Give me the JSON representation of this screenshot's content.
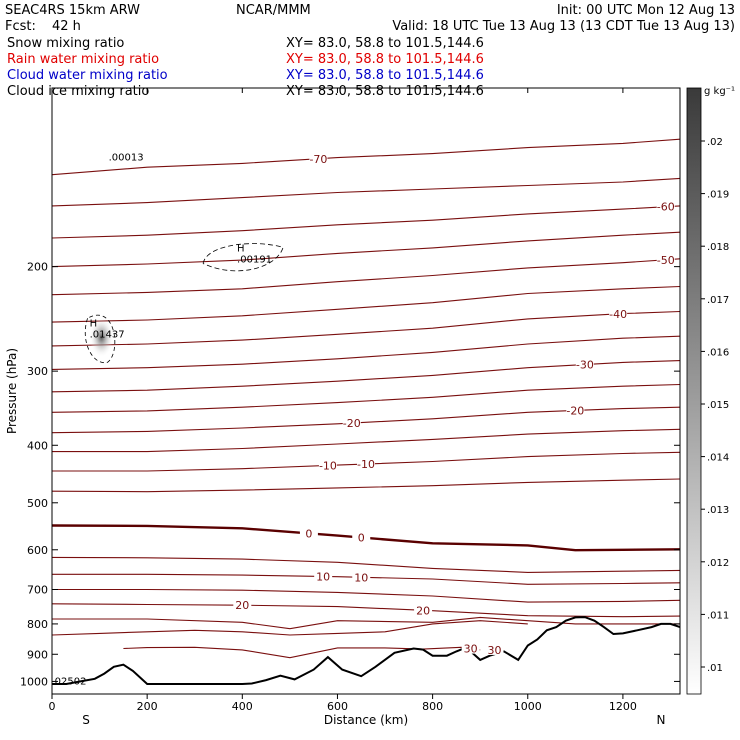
{
  "header": {
    "model": "SEAC4RS 15km ARW",
    "org": "NCAR/MMM",
    "init": "Init: 00 UTC Mon 12 Aug 13",
    "fcst_label": "Fcst:",
    "fcst_value": "42 h",
    "valid": "Valid: 18 UTC Tue 13 Aug 13 (13 CDT Tue 13 Aug 13)"
  },
  "fields": [
    {
      "name": "Snow mixing ratio",
      "xy": "XY=  83.0, 58.8 to 101.5,144.6",
      "color": "#000000"
    },
    {
      "name": "Rain water mixing ratio",
      "xy": "XY=  83.0, 58.8 to 101.5,144.6",
      "color": "#e00000"
    },
    {
      "name": "Cloud water mixing ratio",
      "xy": "XY=  83.0, 58.8 to 101.5,144.6",
      "color": "#0000c8"
    },
    {
      "name": "Cloud ice mixing ratio",
      "xy": "XY=  83.0, 58.8 to 101.5,144.6",
      "color": "#000000"
    }
  ],
  "chart_data": {
    "type": "cross-section contour",
    "xlabel": "Distance (km)",
    "ylabel": "Pressure (hPa)",
    "xlim": [
      0,
      1320
    ],
    "ylim": [
      1050,
      100
    ],
    "y_log": true,
    "x_ticks": [
      0,
      200,
      400,
      600,
      800,
      1000,
      1200
    ],
    "y_ticks": [
      200,
      300,
      400,
      500,
      600,
      700,
      800,
      900,
      1000
    ],
    "x_end_labels": {
      "left": "S",
      "right": "N"
    },
    "colorbar": {
      "unit": "g kg⁻¹",
      "ticks": [
        ".02",
        ".019",
        ".018",
        ".017",
        ".016",
        ".015",
        ".014",
        ".013",
        ".012",
        ".011",
        ".01"
      ]
    },
    "temperature_contours": [
      {
        "level": -70,
        "points": [
          [
            0,
            140
          ],
          [
            200,
            136
          ],
          [
            400,
            134
          ],
          [
            600,
            131
          ],
          [
            800,
            129
          ],
          [
            1000,
            126
          ],
          [
            1200,
            124
          ],
          [
            1320,
            122
          ]
        ]
      },
      {
        "level": -65,
        "points": [
          [
            0,
            158
          ],
          [
            200,
            156
          ],
          [
            400,
            153
          ],
          [
            600,
            150
          ],
          [
            800,
            148
          ],
          [
            1000,
            146
          ],
          [
            1200,
            144
          ],
          [
            1320,
            142
          ]
        ]
      },
      {
        "level": -60,
        "points": [
          [
            0,
            179
          ],
          [
            200,
            177
          ],
          [
            400,
            174
          ],
          [
            600,
            170
          ],
          [
            800,
            167
          ],
          [
            1000,
            163
          ],
          [
            1200,
            160
          ],
          [
            1320,
            158
          ]
        ]
      },
      {
        "level": -55,
        "points": [
          [
            0,
            200
          ],
          [
            200,
            198
          ],
          [
            400,
            195
          ],
          [
            600,
            190
          ],
          [
            800,
            186
          ],
          [
            1000,
            181
          ],
          [
            1200,
            177
          ],
          [
            1320,
            175
          ]
        ]
      },
      {
        "level": -50,
        "points": [
          [
            0,
            223
          ],
          [
            200,
            221
          ],
          [
            400,
            218
          ],
          [
            600,
            212
          ],
          [
            800,
            207
          ],
          [
            1000,
            201
          ],
          [
            1200,
            197
          ],
          [
            1320,
            194
          ]
        ]
      },
      {
        "level": -45,
        "points": [
          [
            0,
            248
          ],
          [
            200,
            246
          ],
          [
            400,
            242
          ],
          [
            600,
            236
          ],
          [
            800,
            230
          ],
          [
            1000,
            222
          ],
          [
            1200,
            218
          ],
          [
            1320,
            216
          ]
        ]
      },
      {
        "level": -40,
        "points": [
          [
            0,
            272
          ],
          [
            200,
            270
          ],
          [
            400,
            266
          ],
          [
            600,
            260
          ],
          [
            800,
            254
          ],
          [
            1000,
            245
          ],
          [
            1200,
            240
          ],
          [
            1320,
            238
          ]
        ]
      },
      {
        "level": -35,
        "points": [
          [
            0,
            298
          ],
          [
            200,
            296
          ],
          [
            400,
            292
          ],
          [
            600,
            286
          ],
          [
            800,
            279
          ],
          [
            1000,
            270
          ],
          [
            1200,
            264
          ],
          [
            1320,
            262
          ]
        ]
      },
      {
        "level": -30,
        "points": [
          [
            0,
            325
          ],
          [
            200,
            323
          ],
          [
            400,
            318
          ],
          [
            600,
            312
          ],
          [
            800,
            305
          ],
          [
            1000,
            296
          ],
          [
            1200,
            290
          ],
          [
            1320,
            288
          ]
        ]
      },
      {
        "level": -25,
        "points": [
          [
            0,
            352
          ],
          [
            200,
            350
          ],
          [
            400,
            345
          ],
          [
            600,
            339
          ],
          [
            800,
            332
          ],
          [
            1000,
            323
          ],
          [
            1200,
            318
          ],
          [
            1320,
            316
          ]
        ]
      },
      {
        "level": -20,
        "points": [
          [
            0,
            381
          ],
          [
            200,
            379
          ],
          [
            400,
            374
          ],
          [
            600,
            368
          ],
          [
            800,
            361
          ],
          [
            1000,
            352
          ],
          [
            1200,
            347
          ],
          [
            1320,
            345
          ]
        ]
      },
      {
        "level": -15,
        "points": [
          [
            0,
            410
          ],
          [
            200,
            410
          ],
          [
            400,
            405
          ],
          [
            600,
            398
          ],
          [
            800,
            391
          ],
          [
            1000,
            383
          ],
          [
            1200,
            378
          ],
          [
            1320,
            376
          ]
        ]
      },
      {
        "level": -10,
        "points": [
          [
            0,
            442
          ],
          [
            200,
            442
          ],
          [
            400,
            438
          ],
          [
            600,
            432
          ],
          [
            800,
            426
          ],
          [
            1000,
            418
          ],
          [
            1200,
            413
          ],
          [
            1320,
            411
          ]
        ]
      },
      {
        "level": -5,
        "points": [
          [
            0,
            478
          ],
          [
            200,
            479
          ],
          [
            400,
            476
          ],
          [
            600,
            472
          ],
          [
            800,
            468
          ],
          [
            1000,
            462
          ],
          [
            1200,
            458
          ],
          [
            1320,
            456
          ]
        ]
      },
      {
        "level": 0,
        "points": [
          [
            0,
            546
          ],
          [
            200,
            547
          ],
          [
            400,
            552
          ],
          [
            600,
            568
          ],
          [
            800,
            585
          ],
          [
            1000,
            590
          ],
          [
            1100,
            601
          ],
          [
            1200,
            600
          ],
          [
            1320,
            599
          ]
        ]
      },
      {
        "level": 5,
        "points": [
          [
            0,
            618
          ],
          [
            200,
            619
          ],
          [
            400,
            622
          ],
          [
            600,
            630
          ],
          [
            800,
            645
          ],
          [
            1000,
            655
          ],
          [
            1200,
            652
          ],
          [
            1320,
            650
          ]
        ]
      },
      {
        "level": 10,
        "points": [
          [
            0,
            660
          ],
          [
            200,
            660
          ],
          [
            400,
            662
          ],
          [
            600,
            666
          ],
          [
            800,
            672
          ],
          [
            1000,
            686
          ],
          [
            1200,
            684
          ],
          [
            1320,
            682
          ]
        ]
      },
      {
        "level": 15,
        "points": [
          [
            0,
            700
          ],
          [
            200,
            700
          ],
          [
            400,
            702
          ],
          [
            600,
            708
          ],
          [
            800,
            718
          ],
          [
            1000,
            735
          ],
          [
            1200,
            733
          ],
          [
            1320,
            730
          ]
        ]
      },
      {
        "level": 20,
        "points": [
          [
            0,
            740
          ],
          [
            200,
            742
          ],
          [
            400,
            744
          ],
          [
            600,
            748
          ],
          [
            800,
            760
          ],
          [
            1000,
            775
          ],
          [
            1200,
            778
          ],
          [
            1320,
            776
          ]
        ]
      },
      {
        "level": 25,
        "points": [
          [
            0,
            785
          ],
          [
            200,
            785
          ],
          [
            400,
            795
          ],
          [
            500,
            815
          ],
          [
            600,
            790
          ],
          [
            800,
            795
          ],
          [
            900,
            780
          ],
          [
            1000,
            790
          ],
          [
            1100,
            800
          ],
          [
            1320,
            800
          ]
        ]
      },
      {
        "level": 28,
        "points": [
          [
            0,
            835
          ],
          [
            100,
            830
          ],
          [
            200,
            825
          ],
          [
            300,
            820
          ],
          [
            400,
            825
          ],
          [
            500,
            835
          ],
          [
            600,
            830
          ],
          [
            700,
            825
          ],
          [
            800,
            800
          ],
          [
            900,
            790
          ],
          [
            1000,
            800
          ]
        ]
      },
      {
        "level": 30,
        "points": [
          [
            150,
            880
          ],
          [
            200,
            877
          ],
          [
            300,
            876
          ],
          [
            400,
            885
          ],
          [
            500,
            912
          ],
          [
            600,
            878
          ],
          [
            700,
            878
          ],
          [
            780,
            882
          ],
          [
            860,
            876
          ],
          [
            900,
            885
          ]
        ]
      }
    ],
    "zero_contour_level": 0,
    "hydrometeors": [
      {
        "field": "Snow mixing ratio",
        "label": "H",
        "max": ".01437",
        "x": 100,
        "p": 258
      },
      {
        "field": "Cloud ice mixing ratio",
        "label": "H",
        "max": ".00191",
        "x": 410,
        "p": 193
      },
      {
        "field": "Cloud ice mixing ratio",
        "label": "",
        "max": ".00013",
        "x": 140,
        "p": 130
      },
      {
        "field": "Cloud water mixing ratio",
        "label": "",
        "max": ".02502",
        "x": 20,
        "p": 993
      }
    ],
    "terrain_pressure": {
      "x": [
        0,
        30,
        60,
        90,
        110,
        130,
        150,
        170,
        200,
        230,
        250,
        300,
        350,
        400,
        420,
        450,
        480,
        510,
        550,
        580,
        610,
        650,
        680,
        720,
        760,
        780,
        800,
        830,
        850,
        870,
        880,
        900,
        920,
        950,
        980,
        1000,
        1020,
        1040,
        1060,
        1080,
        1100,
        1120,
        1140,
        1160,
        1180,
        1200,
        1230,
        1260,
        1280,
        1300,
        1320
      ],
      "p": [
        1010,
        1010,
        1000,
        990,
        970,
        945,
        937,
        960,
        1010,
        1010,
        1010,
        1010,
        1010,
        1010,
        1008,
        995,
        978,
        992,
        955,
        910,
        955,
        980,
        945,
        895,
        880,
        884,
        905,
        905,
        890,
        877,
        890,
        920,
        905,
        890,
        920,
        870,
        850,
        820,
        810,
        790,
        780,
        779,
        790,
        810,
        832,
        830,
        820,
        810,
        800,
        800,
        810
      ]
    },
    "labels_on_plot": [
      "-70",
      "-60",
      "-50",
      "-40",
      "-30",
      "-20",
      "-20",
      "-10",
      "-10",
      "0",
      "0",
      "10",
      "10",
      "20",
      "20",
      "30",
      "30",
      "30"
    ]
  },
  "colors": {
    "temp_contour": "#7a0f0f",
    "zero_contour": "#5a0000",
    "terrain": "#000000"
  }
}
